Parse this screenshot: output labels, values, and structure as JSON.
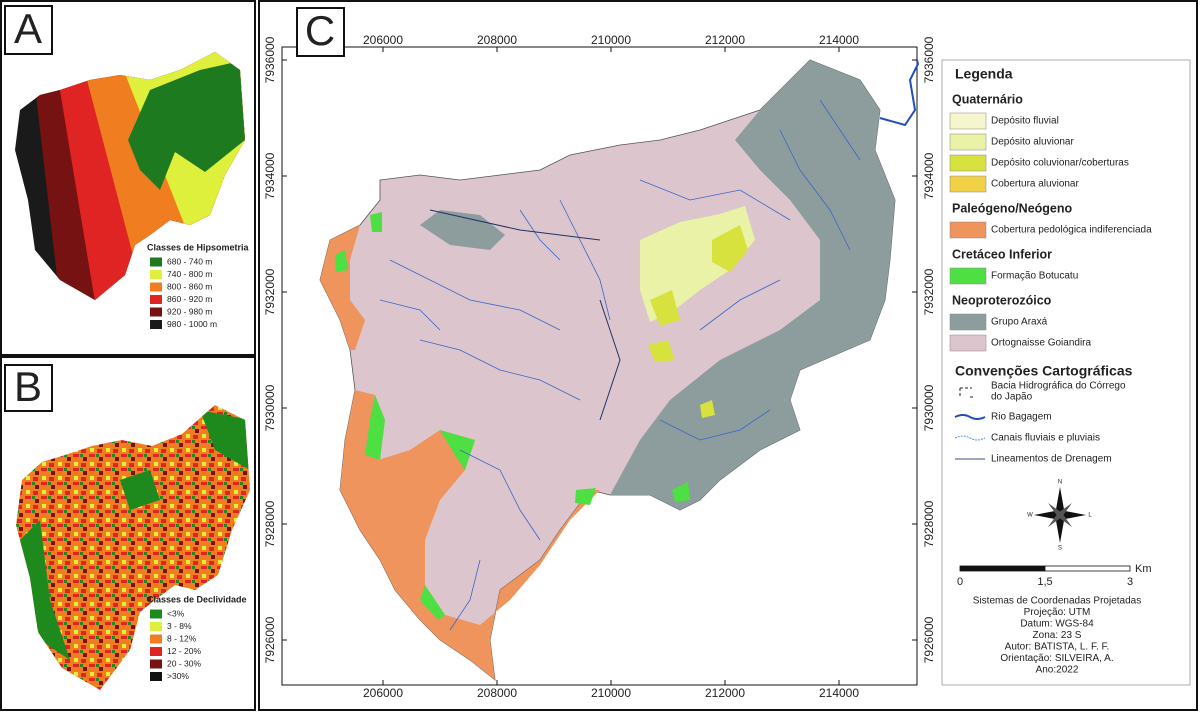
{
  "panel_a": {
    "label": "A",
    "legend_title": "Classes de Hipsometria",
    "classes": [
      {
        "label": "680 - 740 m",
        "color": "#1e7a1e"
      },
      {
        "label": "740 - 800 m",
        "color": "#dff03c"
      },
      {
        "label": "800 - 860 m",
        "color": "#f07d20"
      },
      {
        "label": "860 - 920 m",
        "color": "#e02424"
      },
      {
        "label": "920 - 980 m",
        "color": "#761212"
      },
      {
        "label": "980 - 1000 m",
        "color": "#1a1a1a"
      }
    ]
  },
  "panel_b": {
    "label": "B",
    "legend_title": "Classes de Declividade",
    "classes": [
      {
        "label": "<3%",
        "color": "#1e8a1e"
      },
      {
        "label": "3 - 8%",
        "color": "#dff03c"
      },
      {
        "label": "8 - 12%",
        "color": "#f07d20"
      },
      {
        "label": "12 - 20%",
        "color": "#e02424"
      },
      {
        "label": "20 - 30%",
        "color": "#761212"
      },
      {
        "label": ">30%",
        "color": "#111111"
      }
    ]
  },
  "panel_c": {
    "label": "C",
    "xticks": [
      206000,
      208000,
      210000,
      212000,
      214000
    ],
    "yticks": [
      7926000,
      7928000,
      7930000,
      7932000,
      7934000,
      7936000
    ],
    "legend": {
      "title": "Legenda",
      "sections": [
        {
          "title": "Quaternário",
          "items": [
            {
              "label": "Depósito fluvial",
              "color": "#f6f6cc"
            },
            {
              "label": "Depósito aluvionar",
              "color": "#e9f2a6"
            },
            {
              "label": "Depósito coluvionar/coberturas",
              "color": "#d8e23e"
            },
            {
              "label": "Cobertura aluvionar",
              "color": "#f0d044"
            }
          ]
        },
        {
          "title": "Paleógeno/Neógeno",
          "items": [
            {
              "label": "Cobertura pedológica indiferenciada",
              "color": "#ee945c"
            }
          ]
        },
        {
          "title": "Cretáceo Inferior",
          "items": [
            {
              "label": "Formação Botucatu",
              "color": "#4ee042"
            }
          ]
        },
        {
          "title": "Neoproterozóico",
          "items": [
            {
              "label": "Grupo Araxá",
              "color": "#8d9d9d"
            },
            {
              "label": "Ortognaisse Goiandira",
              "color": "#dcc5cd"
            }
          ]
        }
      ]
    },
    "conventions": {
      "title": "Convenções Cartográficas",
      "items": [
        {
          "label": [
            "Bacia Hidrográfica do Córrego",
            "do Japão"
          ]
        },
        {
          "label": [
            "Rio Bagagem"
          ]
        },
        {
          "label": [
            "Canais fluviais e pluviais"
          ]
        },
        {
          "label": [
            "Lineamentos de Drenagem"
          ]
        }
      ]
    },
    "compass": {
      "n": "N",
      "s": "S",
      "e": "L",
      "w": "W"
    },
    "scale_bar": {
      "unit": "Km",
      "ticks": [
        0,
        {
          "value": 1.5,
          "label": "1,5"
        },
        3
      ]
    },
    "credits": [
      "Sistemas de Coordenadas Projetadas",
      "Projeção: UTM",
      "Datum: WGS-84",
      "Zona: 23 S",
      "Autor: BATISTA, L. F. F.",
      "Orientação: SILVEIRA, A.",
      "Ano:2022"
    ]
  }
}
